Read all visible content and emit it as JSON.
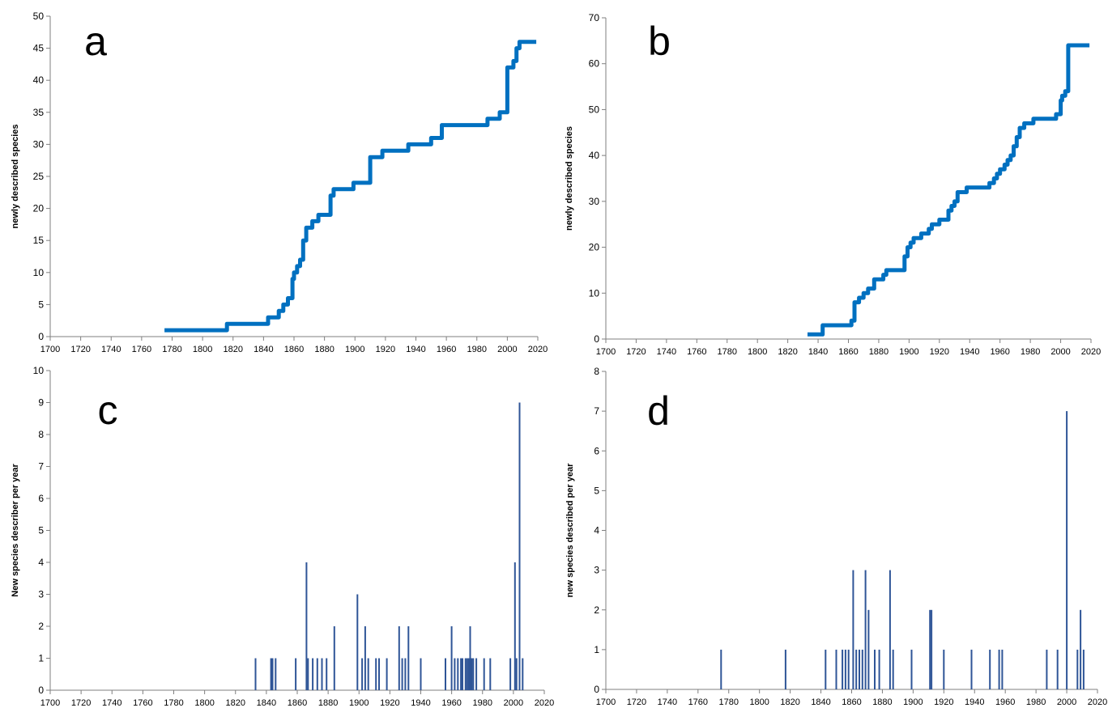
{
  "colors": {
    "line": "#0070C0",
    "bar": "#2F5597",
    "axis": "#7F7F7F",
    "text": "#000000"
  },
  "chart_data": [
    {
      "type": "line",
      "panel_label": "a",
      "xlabel": "",
      "ylabel": "newly described species",
      "xlim": [
        1700,
        2020
      ],
      "ylim": [
        0,
        50
      ],
      "xticks": [
        1700,
        1720,
        1740,
        1760,
        1780,
        1800,
        1820,
        1840,
        1860,
        1880,
        1900,
        1920,
        1940,
        1960,
        1980,
        2000,
        2020
      ],
      "yticks": [
        0,
        5,
        10,
        15,
        20,
        25,
        30,
        35,
        40,
        45,
        50
      ],
      "grid": false,
      "series": [
        {
          "step": true,
          "x": [
            1775,
            1816,
            1843,
            1850,
            1853,
            1856,
            1859,
            1860,
            1862,
            1864,
            1866,
            1868,
            1872,
            1876,
            1884,
            1886,
            1899,
            1910,
            1918,
            1935,
            1950,
            1957,
            1987,
            1995,
            2000,
            2004,
            2006,
            2008,
            2019
          ],
          "y": [
            1,
            2,
            3,
            4,
            5,
            6,
            9,
            10,
            11,
            12,
            15,
            17,
            18,
            19,
            22,
            23,
            24,
            28,
            29,
            30,
            31,
            33,
            34,
            35,
            42,
            43,
            45,
            46,
            46
          ]
        }
      ]
    },
    {
      "type": "line",
      "panel_label": "b",
      "xlabel": "",
      "ylabel": "newly described species",
      "xlim": [
        1700,
        2020
      ],
      "ylim": [
        0,
        70
      ],
      "xticks": [
        1700,
        1720,
        1740,
        1760,
        1780,
        1800,
        1820,
        1840,
        1860,
        1880,
        1900,
        1920,
        1940,
        1960,
        1980,
        2000,
        2020
      ],
      "yticks": [
        0,
        10,
        20,
        30,
        40,
        50,
        60,
        70
      ],
      "grid": false,
      "series": [
        {
          "step": true,
          "x": [
            1833,
            1843,
            1862,
            1864,
            1867,
            1870,
            1873,
            1877,
            1883,
            1885,
            1897,
            1899,
            1901,
            1903,
            1908,
            1913,
            1915,
            1920,
            1926,
            1928,
            1930,
            1932,
            1938,
            1953,
            1956,
            1958,
            1960,
            1963,
            1965,
            1967,
            1969,
            1971,
            1973,
            1976,
            1978,
            1982,
            1987,
            1997,
            2000,
            2001,
            2003,
            2005,
            2019
          ],
          "y": [
            1,
            3,
            4,
            8,
            9,
            10,
            11,
            13,
            14,
            15,
            18,
            20,
            21,
            22,
            23,
            24,
            25,
            26,
            28,
            29,
            30,
            32,
            33,
            34,
            35,
            36,
            37,
            38,
            39,
            40,
            42,
            44,
            46,
            47,
            47,
            48,
            48,
            49,
            52,
            53,
            54,
            64,
            64
          ]
        }
      ]
    },
    {
      "type": "bar",
      "panel_label": "c",
      "xlabel": "",
      "ylabel": "New species describer per year",
      "xlim": [
        1700,
        2020
      ],
      "ylim": [
        0,
        10
      ],
      "xticks": [
        1700,
        1720,
        1740,
        1760,
        1780,
        1800,
        1820,
        1840,
        1860,
        1880,
        1900,
        1920,
        1940,
        1960,
        1980,
        2000,
        2020
      ],
      "yticks": [
        0,
        1,
        2,
        3,
        4,
        5,
        6,
        7,
        8,
        9,
        10
      ],
      "grid": false,
      "x": [
        1833,
        1843,
        1844,
        1846,
        1859,
        1866,
        1867,
        1870,
        1873,
        1876,
        1879,
        1884,
        1899,
        1902,
        1904,
        1906,
        1911,
        1913,
        1918,
        1926,
        1928,
        1930,
        1932,
        1940,
        1956,
        1960,
        1962,
        1964,
        1966,
        1967,
        1969,
        1970,
        1971,
        1972,
        1973,
        1974,
        1976,
        1981,
        1985,
        1998,
        2001,
        2002,
        2004,
        2006
      ],
      "values": [
        1,
        1,
        1,
        1,
        1,
        4,
        1,
        1,
        1,
        1,
        1,
        2,
        3,
        1,
        2,
        1,
        1,
        1,
        1,
        2,
        1,
        1,
        2,
        1,
        1,
        2,
        1,
        1,
        1,
        1,
        1,
        1,
        1,
        2,
        1,
        1,
        1,
        1,
        1,
        1,
        4,
        1,
        9,
        1
      ]
    },
    {
      "type": "bar",
      "panel_label": "d",
      "xlabel": "",
      "ylabel": "new species described per year",
      "xlim": [
        1700,
        2020
      ],
      "ylim": [
        0,
        8
      ],
      "xticks": [
        1700,
        1720,
        1740,
        1760,
        1780,
        1800,
        1820,
        1840,
        1860,
        1880,
        1900,
        1920,
        1940,
        1960,
        1980,
        2000,
        2020
      ],
      "yticks": [
        0,
        1,
        2,
        3,
        4,
        5,
        6,
        7,
        8
      ],
      "grid": false,
      "x": [
        1775,
        1817,
        1843,
        1850,
        1854,
        1856,
        1858,
        1861,
        1863,
        1865,
        1867,
        1869,
        1871,
        1875,
        1878,
        1885,
        1887,
        1899,
        1911,
        1912,
        1920,
        1938,
        1950,
        1956,
        1958,
        1987,
        1994,
        2000,
        2007,
        2009,
        2011
      ],
      "values": [
        1,
        1,
        1,
        1,
        1,
        1,
        1,
        3,
        1,
        1,
        1,
        3,
        2,
        1,
        1,
        3,
        1,
        1,
        2,
        2,
        1,
        1,
        1,
        1,
        1,
        1,
        1,
        7,
        1,
        2,
        1
      ]
    }
  ]
}
